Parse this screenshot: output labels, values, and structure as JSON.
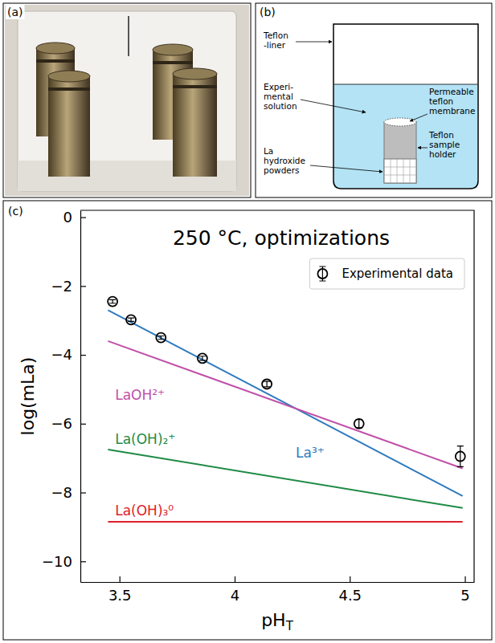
{
  "panels": [
    {
      "label": "(a)"
    },
    {
      "label": "(b)",
      "annotations": [
        {
          "lines": [
            "Teflon",
            "-liner"
          ]
        },
        {
          "lines": [
            "Experi-",
            "mental",
            "solution"
          ]
        },
        {
          "lines": [
            "Permeable",
            "teflon",
            "membrane"
          ]
        },
        {
          "lines": [
            "Teflon",
            "sample",
            "holder"
          ]
        },
        {
          "lines": [
            "La",
            "hydroxide",
            "powders"
          ]
        }
      ]
    },
    {
      "label": "(c)"
    }
  ],
  "chart_data": {
    "type": "scatter",
    "title": "250 °C, optimizations",
    "x_label": "pH",
    "x_label_subscript": "T",
    "y_label": "log(mLa)",
    "xlim": [
      3.33,
      5.04
    ],
    "ylim": [
      -10.6,
      0.2
    ],
    "xticks": [
      3.5,
      4,
      4.5,
      5
    ],
    "yticks": [
      {
        "value": -10,
        "label": "−10"
      },
      {
        "value": -8,
        "label": "−8"
      },
      {
        "value": -6,
        "label": "−6"
      },
      {
        "value": -4,
        "label": "−4"
      },
      {
        "value": -2,
        "label": "−2"
      },
      0
    ],
    "legend": "upper right",
    "grid": false,
    "series": [
      {
        "name": "Experimental data",
        "type": "scatter",
        "marker": "circle",
        "color": "#000000",
        "x": [
          3.47,
          3.55,
          3.68,
          3.86,
          4.14,
          4.54,
          4.98
        ],
        "values": [
          -2.45,
          -2.98,
          -3.5,
          -4.1,
          -4.85,
          -6.0,
          -6.95
        ],
        "errors": [
          0.05,
          0.05,
          0.05,
          0.06,
          0.08,
          0.12,
          0.3
        ]
      },
      {
        "name": "La³⁺",
        "type": "line",
        "color": "#2f7bbf",
        "x": [
          3.45,
          4.99
        ],
        "values": [
          -2.7,
          -8.1
        ]
      },
      {
        "name": "LaOH²⁺",
        "type": "line",
        "color": "#c04fa8",
        "x": [
          3.45,
          4.99
        ],
        "values": [
          -3.6,
          -7.3
        ]
      },
      {
        "name": "La(OH)₂⁺",
        "type": "line",
        "color": "#1f8a45",
        "x": [
          3.45,
          4.99
        ],
        "values": [
          -6.75,
          -8.45
        ]
      },
      {
        "name": "La(OH)₃⁰",
        "type": "line",
        "color": "#e0202a",
        "x": [
          3.45,
          4.99
        ],
        "values": [
          -8.85,
          -8.85
        ]
      }
    ]
  }
}
